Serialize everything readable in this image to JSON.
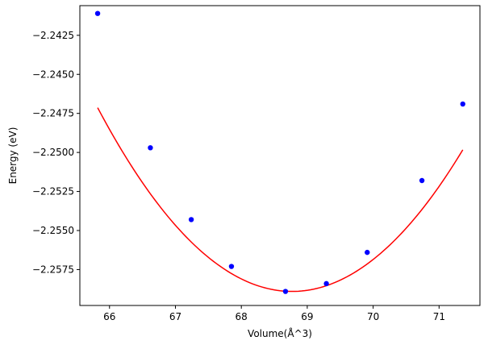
{
  "chart_data": {
    "type": "scatter",
    "title": "",
    "xlabel": "Volume(Å^3)",
    "ylabel": "Energy (eV)",
    "xlim": [
      65.55,
      71.62
    ],
    "ylim": [
      -2.2598,
      -2.2406
    ],
    "xticks": [
      66,
      67,
      68,
      69,
      70,
      71
    ],
    "yticks": [
      -2.2425,
      -2.245,
      -2.2475,
      -2.25,
      -2.2525,
      -2.255,
      -2.2575
    ],
    "ytick_labels": [
      "−2.2425",
      "−2.2450",
      "−2.2475",
      "−2.2500",
      "−2.2525",
      "−2.2550",
      "−2.2575"
    ],
    "grid": false,
    "legend": "none",
    "series": [
      {
        "type": "scatter",
        "color": "#0000ff",
        "x": [
          65.82,
          66.62,
          67.24,
          67.85,
          68.67,
          69.29,
          69.91,
          70.74,
          71.36
        ],
        "y": [
          -2.2411,
          -2.2497,
          -2.2543,
          -2.2573,
          -2.2589,
          -2.2584,
          -2.2564,
          -2.2518,
          -2.2469
        ]
      },
      {
        "type": "line",
        "color": "#ff0000",
        "fit": "quadratic",
        "x_range": [
          65.82,
          71.36
        ],
        "x_min": 68.77,
        "y_min": -2.2589,
        "curvature": 0.001352
      }
    ]
  }
}
